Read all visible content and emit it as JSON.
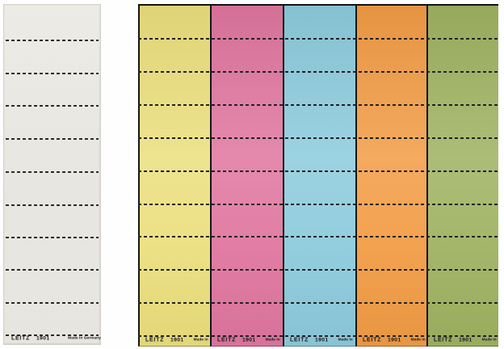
{
  "product": {
    "left_strip": {
      "brand": "LEITZ",
      "model": "1901",
      "origin": "Made in Germany",
      "color": "#e9e7e2",
      "perforation_lines": 10
    },
    "sheet": {
      "border_color": "#121212",
      "perforation_lines": 10,
      "columns": [
        {
          "name": "yellow",
          "color": "#ebdf7d",
          "brand": "LEITZ",
          "model": "1901",
          "origin": "Made in"
        },
        {
          "name": "pink",
          "color": "#e0769f",
          "brand": "LEITZ",
          "model": "1901",
          "origin": "Made in"
        },
        {
          "name": "blue",
          "color": "#8ccbdd",
          "brand": "LEITZ",
          "model": "1901",
          "origin": "Made in"
        },
        {
          "name": "orange",
          "color": "#f29c45",
          "brand": "LEITZ",
          "model": "1901",
          "origin": "Made in"
        },
        {
          "name": "green",
          "color": "#9fb261",
          "brand": "LEITZ",
          "model": "1901",
          "origin": "Made in"
        }
      ]
    }
  }
}
